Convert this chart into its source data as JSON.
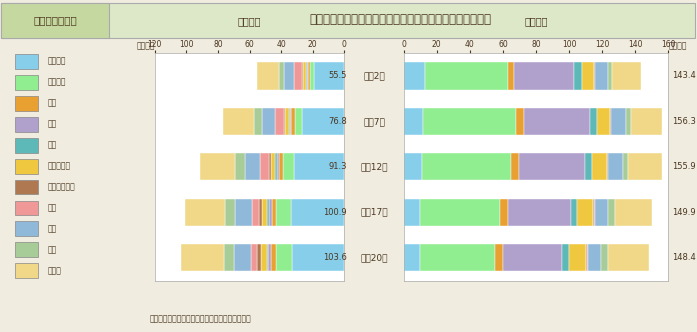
{
  "title_label": "第１－７－２図",
  "title_text": "専攻分野別にみた学生数（大学（学部））の推移（性別）",
  "years": [
    "平成2年",
    "平成7年",
    "平成12年",
    "平成17年",
    "平成20年"
  ],
  "female_totals": [
    55.5,
    76.8,
    91.3,
    100.9,
    103.6
  ],
  "male_totals": [
    143.4,
    156.3,
    155.9,
    149.9,
    148.4
  ],
  "categories": [
    "人文科学",
    "社会科学",
    "理学",
    "工学",
    "農学",
    "医学・歯学",
    "その他の保健",
    "家政",
    "教育",
    "芸術",
    "その他"
  ],
  "colors": [
    "#87ceeb",
    "#90ee90",
    "#e8a030",
    "#b0a0cc",
    "#5db8b8",
    "#f0c840",
    "#b07850",
    "#f09898",
    "#90b8d8",
    "#a8cc98",
    "#f0d888"
  ],
  "female_data": [
    [
      19.0,
      2.5,
      1.5,
      0.5,
      0.8,
      1.8,
      0.4,
      5.5,
      6.0,
      3.5,
      14.0
    ],
    [
      27.0,
      4.5,
      2.0,
      0.8,
      1.0,
      2.2,
      0.6,
      6.0,
      8.0,
      5.0,
      19.7
    ],
    [
      32.0,
      7.0,
      2.5,
      1.2,
      1.2,
      2.8,
      1.2,
      5.5,
      9.5,
      6.0,
      22.4
    ],
    [
      33.5,
      9.5,
      3.0,
      1.5,
      1.2,
      3.2,
      2.0,
      4.5,
      10.5,
      6.5,
      25.5
    ],
    [
      33.0,
      10.5,
      3.0,
      1.5,
      1.2,
      3.5,
      2.5,
      4.0,
      10.5,
      6.5,
      27.4
    ]
  ],
  "male_data": [
    [
      13.0,
      50.0,
      4.0,
      36.0,
      4.5,
      7.5,
      0.4,
      0.2,
      8.0,
      2.5,
      17.3
    ],
    [
      12.0,
      56.0,
      4.5,
      40.0,
      4.5,
      8.0,
      0.4,
      0.2,
      8.5,
      3.0,
      19.2
    ],
    [
      11.0,
      54.0,
      4.5,
      40.0,
      4.5,
      9.0,
      0.6,
      0.2,
      8.5,
      3.5,
      20.1
    ],
    [
      10.0,
      48.5,
      4.5,
      38.0,
      4.0,
      9.5,
      0.8,
      0.2,
      8.0,
      4.0,
      22.4
    ],
    [
      10.0,
      45.5,
      4.5,
      36.0,
      4.0,
      10.0,
      1.0,
      0.2,
      8.0,
      4.0,
      25.2
    ]
  ],
  "background_color": "#f0ede0",
  "title_bg": "#dde8c8",
  "title_label_bg": "#c5d8a0",
  "note": "（備考）文部科学省「学校基本調査」より作成。",
  "female_label": "〈女性〉",
  "male_label": "〈男性〉"
}
